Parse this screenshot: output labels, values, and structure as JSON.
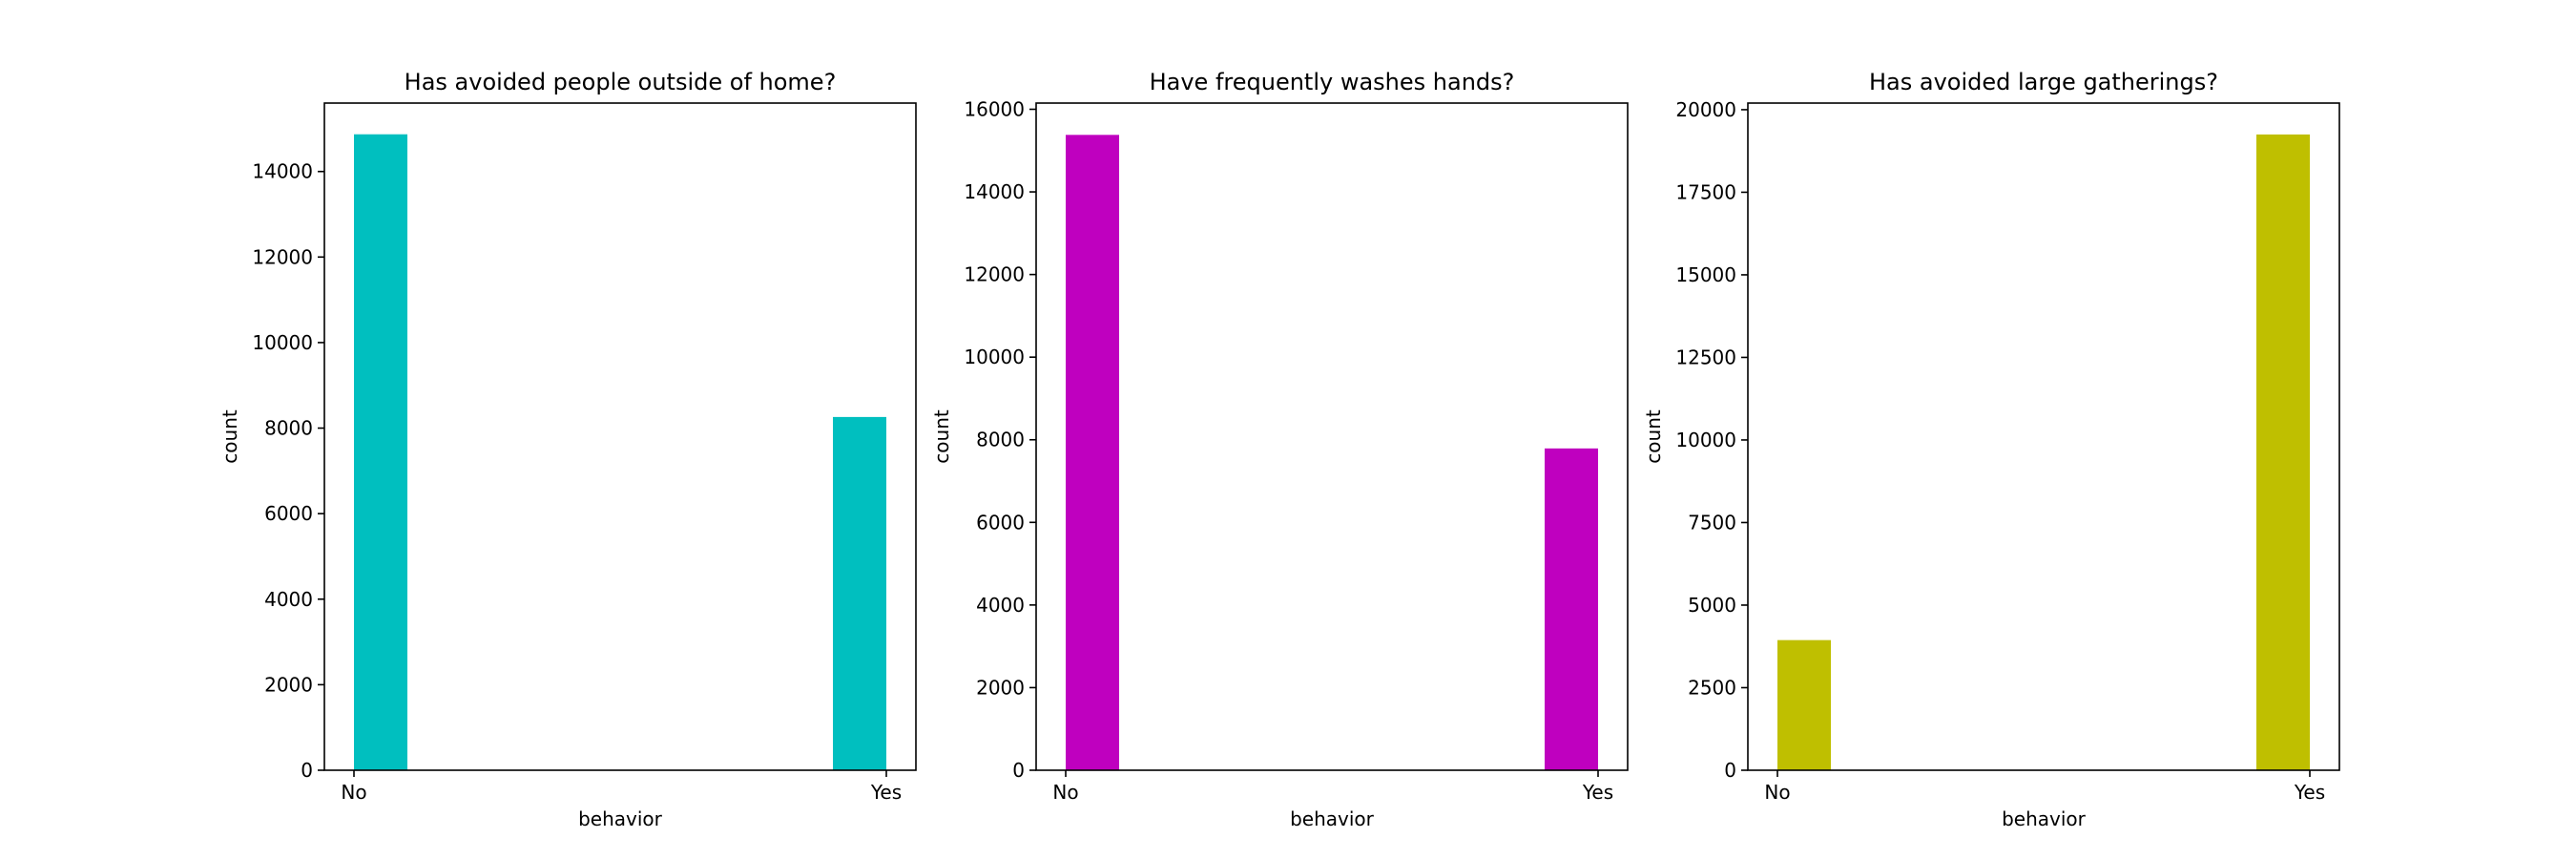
{
  "chart_data": [
    {
      "type": "bar",
      "title": "Has avoided people outside of home?",
      "xlabel": "behavior",
      "ylabel": "count",
      "categories": [
        "No",
        "Yes"
      ],
      "values": [
        14870,
        8260
      ],
      "ylim": [
        0,
        15600
      ],
      "yticks": [
        0,
        2000,
        4000,
        6000,
        8000,
        10000,
        12000,
        14000
      ],
      "color": "#00bfbf",
      "grid": false
    },
    {
      "type": "bar",
      "title": "Have frequently washes hands?",
      "xlabel": "behavior",
      "ylabel": "count",
      "categories": [
        "No",
        "Yes"
      ],
      "values": [
        15380,
        7790
      ],
      "ylim": [
        0,
        16150
      ],
      "yticks": [
        0,
        2000,
        4000,
        6000,
        8000,
        10000,
        12000,
        14000,
        16000
      ],
      "color": "#bf00bf",
      "grid": false
    },
    {
      "type": "bar",
      "title": "Has avoided large gatherings?",
      "xlabel": "behavior",
      "ylabel": "count",
      "categories": [
        "No",
        "Yes"
      ],
      "values": [
        3940,
        19250
      ],
      "ylim": [
        0,
        20200
      ],
      "yticks": [
        0,
        2500,
        5000,
        7500,
        10000,
        12500,
        15000,
        17500,
        20000
      ],
      "color": "#bfbf00",
      "grid": false
    }
  ]
}
